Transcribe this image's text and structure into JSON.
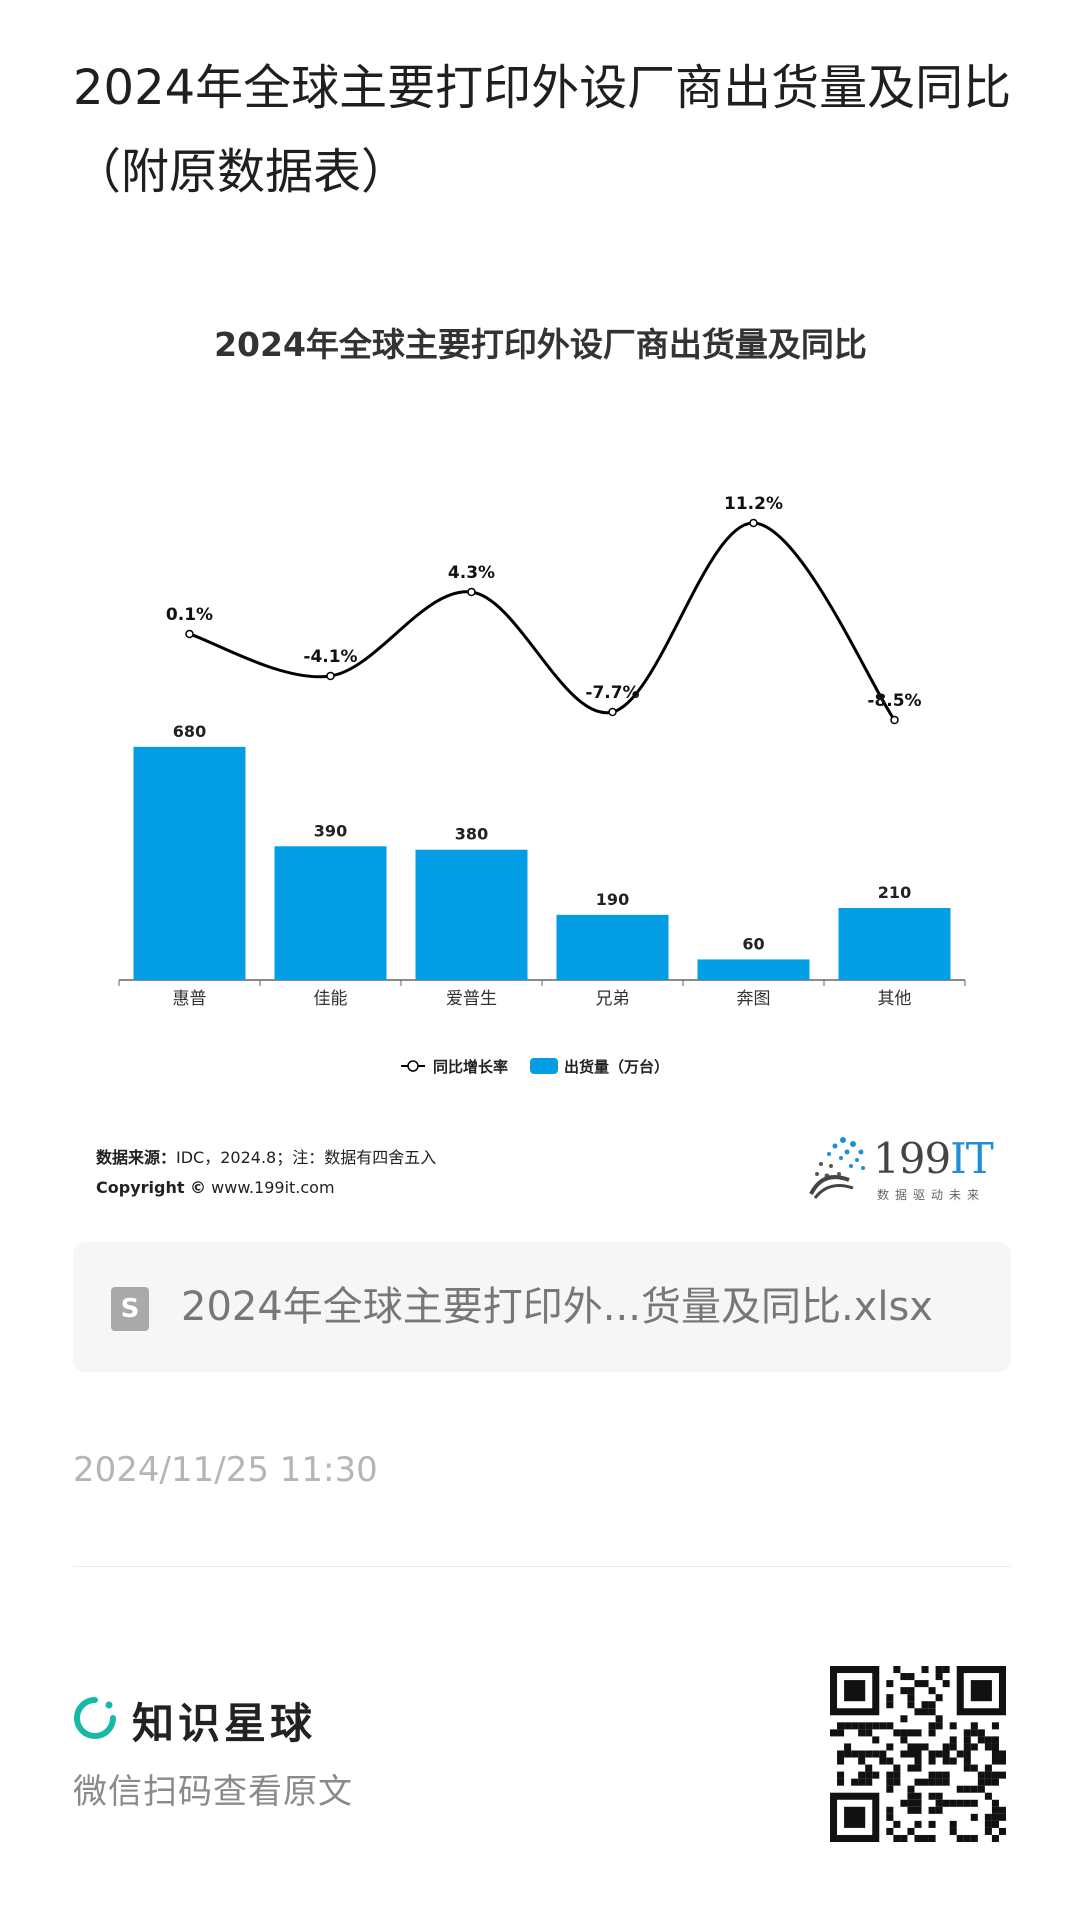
{
  "page": {
    "title": "2024年全球主要打印外设厂商出货量及同比（附原数据表）"
  },
  "chart_data": {
    "type": "bar",
    "title": "2024年全球主要打印外设厂商出货量及同比",
    "categories": [
      "惠普",
      "佳能",
      "爱普生",
      "兄弟",
      "奔图",
      "其他"
    ],
    "series": [
      {
        "name": "出货量（万台）",
        "type": "bar",
        "values": [
          680,
          390,
          380,
          190,
          60,
          210
        ],
        "labels": [
          "680",
          "390",
          "380",
          "190",
          "60",
          "210"
        ],
        "color": "#029de4"
      },
      {
        "name": "同比增长率",
        "type": "line",
        "values": [
          0.1,
          -4.1,
          4.3,
          -7.7,
          11.2,
          -8.5
        ],
        "labels": [
          "0.1%",
          "-4.1%",
          "4.3%",
          "-7.7%",
          "11.2%",
          "-8.5%"
        ],
        "color": "#000000"
      }
    ],
    "legend_position": "bottom",
    "bar_ylim": [
      0,
      700
    ],
    "line_ylim": [
      -9,
      12
    ],
    "grid": false
  },
  "footer": {
    "source_label": "数据来源：",
    "source_text": "IDC，2024.8；注：数据有四舍五入",
    "copyright_label": "Copyright ©",
    "copyright_url": "www.199it.com",
    "logo_text_num": "199",
    "logo_text_it": "IT",
    "logo_sub": "数据驱动未来"
  },
  "attachment": {
    "icon": "file-icon",
    "icon_letter": "S",
    "file_name": "2024年全球主要打印外...货量及同比.xlsx"
  },
  "meta": {
    "timestamp": "2024/11/25 11:30"
  },
  "brand": {
    "name": "知识星球",
    "subtitle": "微信扫码查看原文",
    "accent": "#16b8a6"
  }
}
